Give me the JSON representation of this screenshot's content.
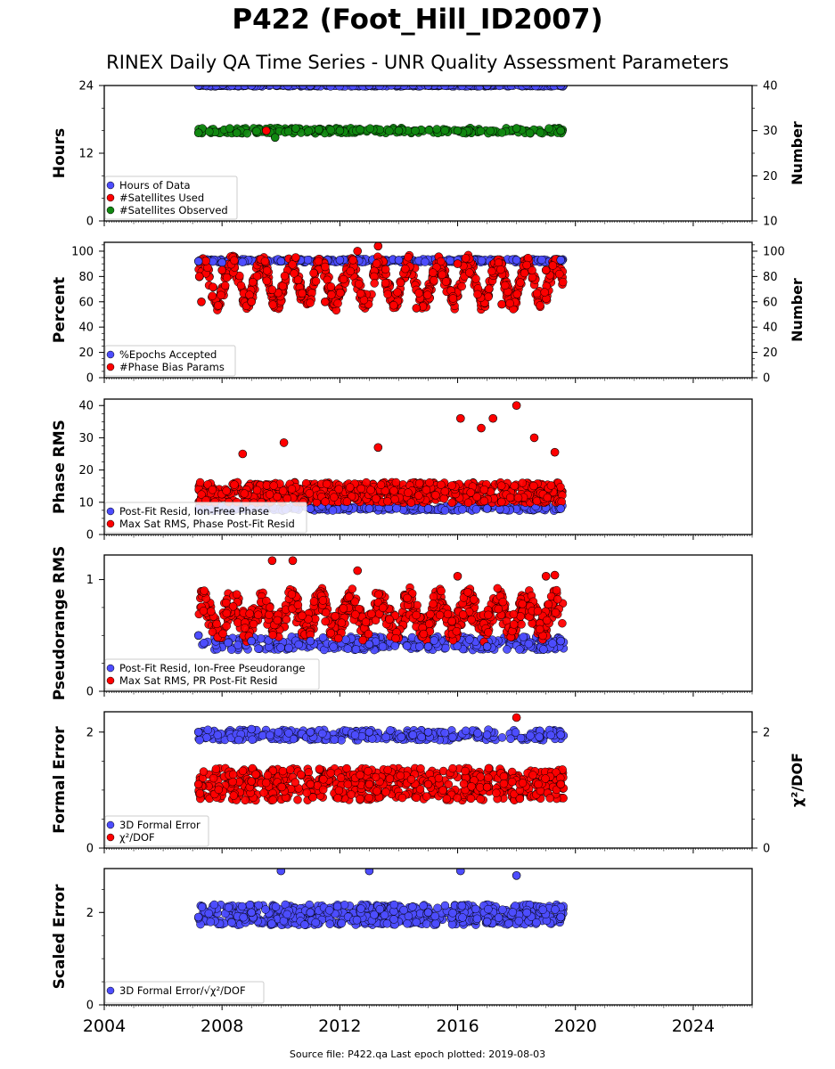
{
  "title": "P422 (Foot_Hill_ID2007)",
  "subtitle": "RINEX Daily QA Time Series - UNR Quality Assessment Parameters",
  "footer": "Source file: P422.qa Last epoch plotted: 2019-08-03",
  "colors": {
    "blue": "#4d4dff",
    "red": "#ff0000",
    "green": "#118811",
    "navy": "#0a0a3a"
  },
  "chart_data": [
    {
      "type": "scatter",
      "xlim": [
        2004,
        2026
      ],
      "xticks": [
        "2004",
        "2008",
        "2012",
        "2016",
        "2020",
        "2024"
      ],
      "ylabel": "Hours",
      "ylim": [
        0,
        24
      ],
      "yticks": [
        "0",
        "12",
        "24"
      ],
      "ylabel_right": "Number",
      "ylim_right": [
        10,
        40
      ],
      "yticks_right": [
        "10",
        "20",
        "30",
        "40"
      ],
      "legend": [
        "Hours of Data",
        "#Satellites Used",
        "#Satellites Observed"
      ],
      "legend_placement": "lower-left",
      "series": [
        {
          "name": "Hours of Data",
          "axis": "left",
          "color": "#4d4dff",
          "x": [
            2007.2,
            2009,
            2011,
            2013,
            2015,
            2017,
            2019.5
          ],
          "y": [
            24,
            24,
            24,
            24,
            24,
            24,
            24
          ]
        },
        {
          "name": "#Satellites Used",
          "axis": "right",
          "color": "#ff0000",
          "x": [
            2009.5
          ],
          "y": [
            30
          ]
        },
        {
          "name": "#Satellites Observed",
          "axis": "right",
          "color": "#118811",
          "x": [
            2007.2,
            2008.5,
            2009.8,
            2010.5,
            2012,
            2014,
            2016,
            2018,
            2019.5
          ],
          "y": [
            29.5,
            29.5,
            28.5,
            30.5,
            30,
            30,
            30,
            30.5,
            30
          ]
        }
      ]
    },
    {
      "type": "scatter",
      "xlim": [
        2004,
        2026
      ],
      "xticks": [
        "2004",
        "2008",
        "2012",
        "2016",
        "2020",
        "2024"
      ],
      "ylabel": "Percent",
      "ylim": [
        0,
        107
      ],
      "yticks": [
        "0",
        "20",
        "40",
        "60",
        "80",
        "100"
      ],
      "ylabel_right": "Number",
      "ylim_right": [
        0,
        107
      ],
      "yticks_right": [
        "0",
        "20",
        "40",
        "60",
        "80",
        "100"
      ],
      "legend": [
        "%Epochs Accepted",
        "#Phase Bias Params"
      ],
      "legend_placement": "lower-left",
      "series": [
        {
          "name": "%Epochs Accepted",
          "axis": "left",
          "color": "#4d4dff",
          "x": [
            2007.2,
            2008,
            2010,
            2012,
            2014,
            2016,
            2018,
            2019.5
          ],
          "y": [
            92,
            91,
            92,
            93,
            93,
            93,
            93,
            93
          ]
        },
        {
          "name": "#Phase Bias Params",
          "axis": "right",
          "color": "#ff0000",
          "x": [
            2007.3,
            2008,
            2009,
            2010.5,
            2011.5,
            2012.6,
            2013.3,
            2014.6,
            2016,
            2017.5,
            2019
          ],
          "y": [
            60,
            85,
            60,
            95,
            60,
            100,
            104,
            55,
            90,
            58,
            85
          ]
        }
      ]
    },
    {
      "type": "scatter",
      "xlim": [
        2004,
        2026
      ],
      "xticks": [
        "2004",
        "2008",
        "2012",
        "2016",
        "2020",
        "2024"
      ],
      "ylabel": "Phase RMS",
      "ylim": [
        0,
        42
      ],
      "yticks": [
        "0",
        "10",
        "20",
        "30",
        "40"
      ],
      "legend": [
        "Post-Fit Resid, Ion-Free Phase",
        "Max Sat RMS, Phase Post-Fit Resid"
      ],
      "legend_placement": "lower-left",
      "series": [
        {
          "name": "Post-Fit Resid, Ion-Free Phase",
          "axis": "left",
          "color": "#4d4dff",
          "x": [
            2007.2,
            2009,
            2011,
            2013,
            2015,
            2017,
            2019.5
          ],
          "y": [
            8,
            8,
            8,
            8,
            8,
            8,
            8
          ]
        },
        {
          "name": "Max Sat RMS, Phase Post-Fit Resid",
          "axis": "left",
          "color": "#ff0000",
          "x": [
            2008.7,
            2010.1,
            2013.3,
            2016.1,
            2016.8,
            2017.2,
            2018.0,
            2018.6,
            2019.3
          ],
          "y": [
            25,
            28.5,
            27,
            36,
            33,
            36,
            40,
            30,
            25.5
          ]
        }
      ]
    },
    {
      "type": "scatter",
      "xlim": [
        2004,
        2026
      ],
      "xticks": [
        "2004",
        "2008",
        "2012",
        "2016",
        "2020",
        "2024"
      ],
      "ylabel": "Pseudorange RMS",
      "ylim": [
        0,
        1.22
      ],
      "yticks": [
        "0",
        "1"
      ],
      "legend": [
        "Post-Fit Resid, Ion-Free Pseudorange",
        "Max Sat RMS, PR Post-Fit Resid"
      ],
      "legend_placement": "lower-left",
      "series": [
        {
          "name": "Post-Fit Resid, Ion-Free Pseudorange",
          "axis": "left",
          "color": "#4d4dff",
          "x": [
            2007.2,
            2009,
            2011,
            2013,
            2015,
            2017,
            2019.5
          ],
          "y": [
            0.5,
            0.45,
            0.45,
            0.42,
            0.4,
            0.4,
            0.45
          ]
        },
        {
          "name": "Max Sat RMS, PR Post-Fit Resid",
          "axis": "left",
          "color": "#ff0000",
          "x": [
            2009.7,
            2010.4,
            2012.6,
            2016,
            2019,
            2019.3
          ],
          "y": [
            1.17,
            1.17,
            1.08,
            1.03,
            1.03,
            1.04
          ]
        }
      ]
    },
    {
      "type": "scatter",
      "xlim": [
        2004,
        2026
      ],
      "xticks": [
        "2004",
        "2008",
        "2012",
        "2016",
        "2020",
        "2024"
      ],
      "ylabel": "Formal Error",
      "ylim": [
        0,
        2.35
      ],
      "yticks": [
        "0",
        "2"
      ],
      "ylabel_right": "χ²/DOF",
      "ylim_right": [
        0,
        2.35
      ],
      "yticks_right": [
        "0",
        "2"
      ],
      "legend": [
        "3D Formal Error",
        "χ²/DOF"
      ],
      "legend_placement": "lower-left",
      "series": [
        {
          "name": "3D Formal Error",
          "axis": "left",
          "color": "#4d4dff",
          "x": [
            2007.2,
            2009,
            2011,
            2013,
            2015,
            2017,
            2019.5
          ],
          "y": [
            2.0,
            2.05,
            2.0,
            2.0,
            2.0,
            1.95,
            1.95
          ]
        },
        {
          "name": "χ²/DOF",
          "axis": "right",
          "color": "#ff0000",
          "x": [
            2007.2,
            2009,
            2011,
            2013,
            2015,
            2017,
            2018,
            2019.5
          ],
          "y": [
            1.1,
            1.15,
            1.1,
            1.1,
            1.1,
            1.05,
            2.25,
            1.1
          ]
        }
      ]
    },
    {
      "type": "scatter",
      "xlim": [
        2004,
        2026
      ],
      "xticks": [
        "2004",
        "2008",
        "2012",
        "2016",
        "2020",
        "2024"
      ],
      "ylabel": "Scaled Error",
      "ylim": [
        0,
        2.95
      ],
      "yticks": [
        "0",
        "2"
      ],
      "legend": [
        "3D Formal Error/√χ²/DOF"
      ],
      "legend_placement": "lower-left",
      "series": [
        {
          "name": "3D Formal Error/√χ²/DOF",
          "axis": "left",
          "color": "#4d4dff",
          "x": [
            2007.2,
            2009,
            2010,
            2011,
            2013,
            2015,
            2016.1,
            2017,
            2018,
            2019.5
          ],
          "y": [
            1.9,
            2.0,
            2.9,
            2.0,
            2.9,
            2.0,
            2.9,
            1.8,
            2.8,
            1.9
          ]
        }
      ]
    }
  ]
}
